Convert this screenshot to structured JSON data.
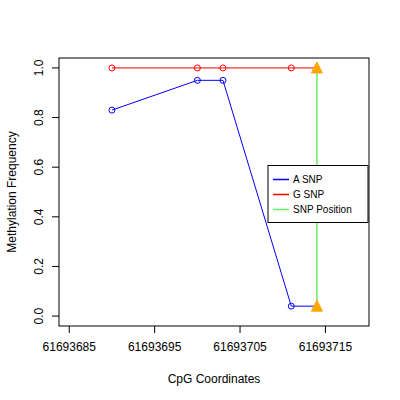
{
  "chart_data": {
    "type": "line",
    "x_label": "CpG Coordinates",
    "y_label": "Methylation Frequency",
    "xlim": [
      61693683.8,
      61693720.1
    ],
    "xticks": [
      61693685,
      61693695,
      61693705,
      61693715
    ],
    "ylim": [
      -0.04,
      1.04
    ],
    "yticks": [
      {
        "value": 0,
        "label": "0.0"
      },
      0.2,
      0.4,
      0.6,
      0.8,
      {
        "value": 1,
        "label": "1.0"
      }
    ],
    "legend": "right",
    "series": [
      {
        "name": "A SNP",
        "color": "#0000ff",
        "marker": "circle",
        "x": [
          61693690,
          61693700,
          61693703,
          61693711,
          61693714
        ],
        "values": [
          0.83,
          0.95,
          0.95,
          0.04,
          0.04
        ],
        "colors": [
          "#0000ff",
          "#0000ff",
          "#0000ff",
          "#0000ff",
          "#ffa500"
        ]
      },
      {
        "name": "G SNP",
        "color": "#ff0000",
        "marker": "circle",
        "x": [
          61693690,
          61693700,
          61693703,
          61693711,
          61693714
        ],
        "values": [
          1.0,
          1.0,
          1.0,
          1.0,
          1.0
        ],
        "colors": [
          "#ff0000",
          "#ff0000",
          "#ff0000",
          "#ff0000",
          "#ffa500"
        ]
      },
      {
        "name": "SNP Position",
        "color": "#66ee66",
        "type": "vline",
        "x": [
          61693714,
          61693714
        ],
        "values": [
          0.04,
          1.0
        ]
      }
    ]
  }
}
